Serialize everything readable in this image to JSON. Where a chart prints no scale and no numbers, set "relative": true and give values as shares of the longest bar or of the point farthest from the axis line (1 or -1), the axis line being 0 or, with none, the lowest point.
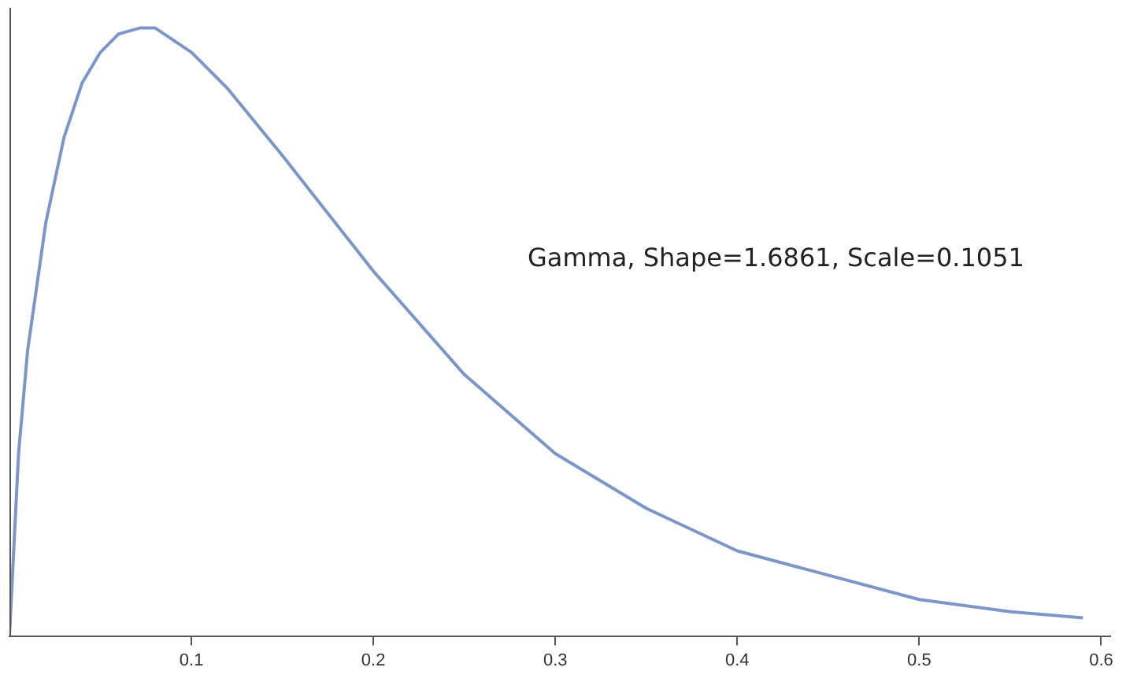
{
  "chart_data": {
    "type": "line",
    "relative": true,
    "annotations": [
      "Gamma, Shape=1.6861, Scale=0.1051"
    ],
    "x": [
      0,
      0.005,
      0.01,
      0.02,
      0.03,
      0.04,
      0.05,
      0.06,
      0.072,
      0.08,
      0.1,
      0.12,
      0.15,
      0.2,
      0.25,
      0.3,
      0.35,
      0.4,
      0.45,
      0.5,
      0.55,
      0.59
    ],
    "xlim": [
      0,
      0.605
    ],
    "xticks": [
      0.1,
      0.2,
      0.3,
      0.4,
      0.5,
      0.6
    ],
    "series": [
      {
        "color": "#7b96c9",
        "values": [
          0,
          0.3,
          0.47,
          0.68,
          0.82,
          0.91,
          0.96,
          0.99,
          1,
          1,
          0.96,
          0.9,
          0.79,
          0.6,
          0.43,
          0.3,
          0.21,
          0.14,
          0.1,
          0.06,
          0.04,
          0.03
        ]
      }
    ],
    "grid": false,
    "legend": false,
    "marker": "none",
    "line_style": "solid"
  }
}
